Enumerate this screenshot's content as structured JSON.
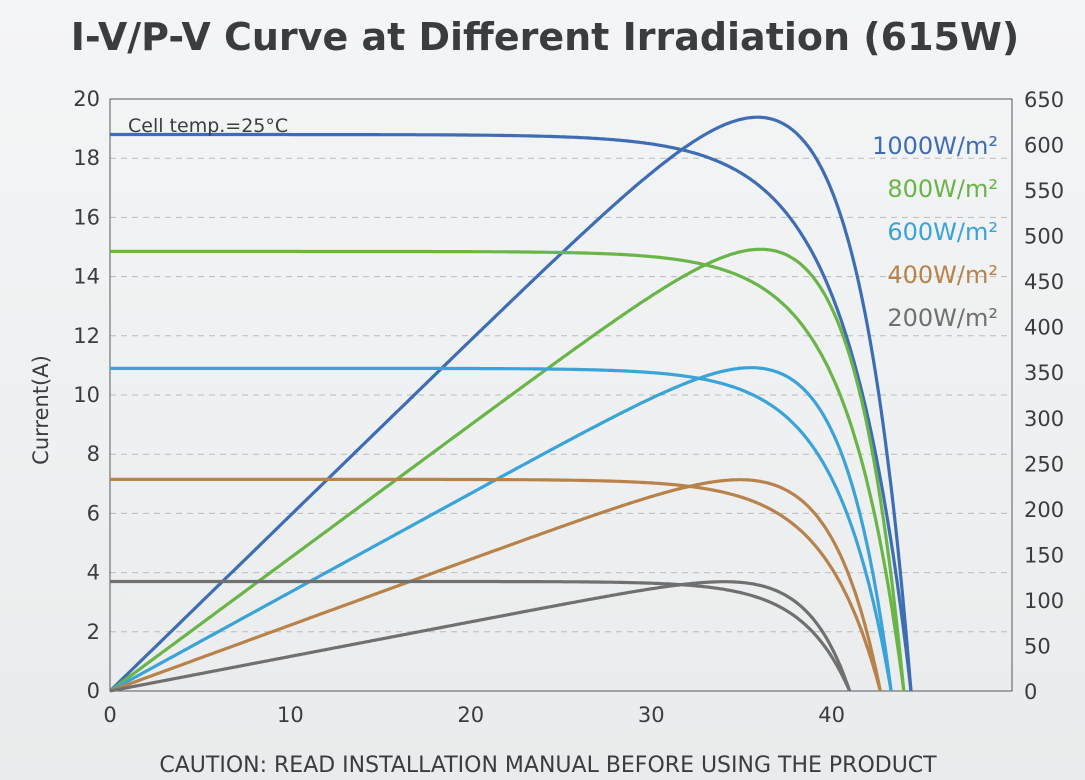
{
  "chart_data": {
    "type": "line",
    "title": "I-V/P-V Curve at Different Irradiation (615W)",
    "ylabel": "Current(A)",
    "xlabel": "",
    "xlim": [
      0,
      50
    ],
    "ylim": [
      0,
      20
    ],
    "y2lim": [
      0,
      650
    ],
    "x_ticks": [
      0,
      10,
      20,
      30,
      40
    ],
    "y_ticks": [
      0,
      2,
      4,
      6,
      8,
      10,
      12,
      14,
      16,
      18,
      20
    ],
    "y2_ticks": [
      0,
      50,
      100,
      150,
      200,
      250,
      300,
      350,
      400,
      450,
      500,
      550,
      600,
      650
    ],
    "grid": "horizontal dashed",
    "legend_position": "top-right",
    "annotation": "Cell temp.=25°C",
    "caution": "CAUTION: READ INSTALLATION MANUAL BEFORE USING THE PRODUCT",
    "series": [
      {
        "name": "1000W/m²",
        "color": "#3f6db3",
        "isc": 18.8,
        "voc": 44.4,
        "vmp": 36.0,
        "pmax": 630
      },
      {
        "name": "800W/m²",
        "color": "#6ab547",
        "isc": 14.85,
        "voc": 44.0,
        "vmp": 36.5,
        "pmax": 485
      },
      {
        "name": "600W/m²",
        "color": "#3aa3d8",
        "isc": 10.9,
        "voc": 43.3,
        "vmp": 36.0,
        "pmax": 355
      },
      {
        "name": "400W/m²",
        "color": "#b8834a",
        "isc": 7.15,
        "voc": 42.7,
        "vmp": 35.3,
        "pmax": 232
      },
      {
        "name": "200W/m²",
        "color": "#707070",
        "isc": 3.7,
        "voc": 41.0,
        "vmp": 34.7,
        "pmax": 120
      }
    ]
  }
}
